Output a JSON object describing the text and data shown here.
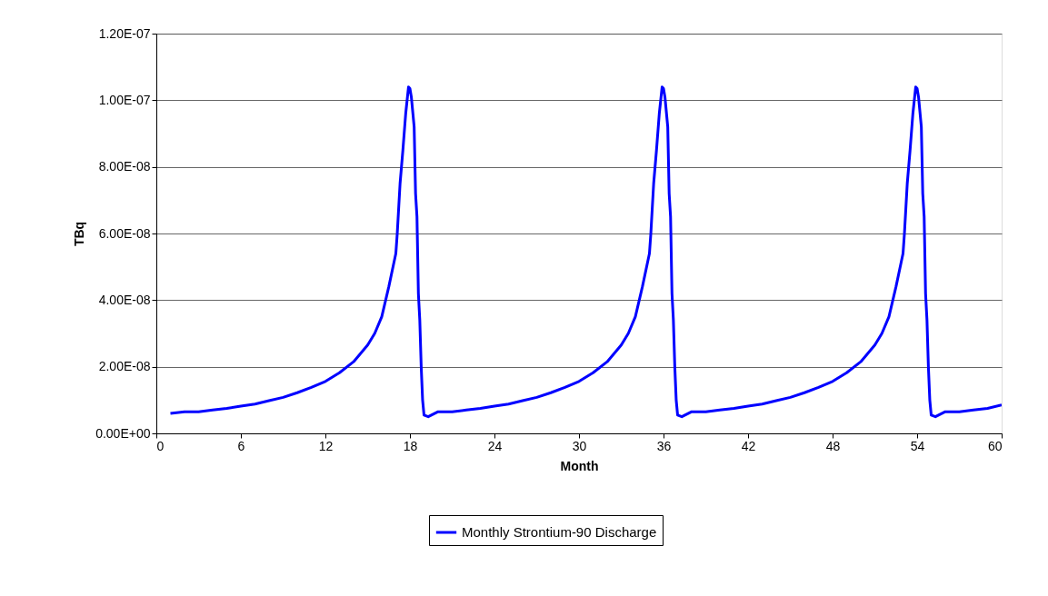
{
  "chart_data": {
    "type": "line",
    "xlabel": "Month",
    "ylabel": "TBq",
    "xlim": [
      0,
      60
    ],
    "xticks": [
      0,
      6,
      12,
      18,
      24,
      30,
      36,
      42,
      48,
      54,
      60
    ],
    "ylim": [
      0,
      1.2e-07
    ],
    "yticks": [
      {
        "value": 0,
        "label": "0.00E+00"
      },
      {
        "value": 2e-08,
        "label": "2.00E-08"
      },
      {
        "value": 4e-08,
        "label": "4.00E-08"
      },
      {
        "value": 6e-08,
        "label": "6.00E-08"
      },
      {
        "value": 8e-08,
        "label": "8.00E-08"
      },
      {
        "value": 1e-07,
        "label": "1.00E-07"
      },
      {
        "value": 1.2e-07,
        "label": "1.20E-07"
      }
    ],
    "grid": "y",
    "legend": "bottom",
    "marker": "none",
    "line_style": "solid",
    "series": [
      {
        "name": "Monthly Strontium-90 Discharge",
        "color": "#0000ff",
        "x": [
          1,
          2,
          3,
          4,
          5,
          6,
          7,
          8,
          9,
          10,
          11,
          12,
          13,
          14,
          15,
          15.5,
          16,
          16.5,
          17,
          17.1,
          17.3,
          17.5,
          17.7,
          17.9,
          18,
          18.1,
          18.3,
          18.4,
          18.5,
          18.6,
          18.7,
          18.8,
          18.9,
          19,
          19.3,
          20,
          21,
          22,
          23,
          24,
          25,
          26,
          27,
          28,
          29,
          30,
          31,
          32,
          33,
          33.5,
          34,
          34.5,
          35,
          35.1,
          35.3,
          35.5,
          35.7,
          35.9,
          36,
          36.1,
          36.3,
          36.4,
          36.5,
          36.6,
          36.7,
          36.8,
          36.9,
          37,
          37.3,
          38,
          39,
          40,
          41,
          42,
          43,
          44,
          45,
          46,
          47,
          48,
          49,
          50,
          51,
          51.5,
          52,
          52.5,
          53,
          53.1,
          53.3,
          53.5,
          53.7,
          53.9,
          54,
          54.1,
          54.3,
          54.4,
          54.5,
          54.6,
          54.7,
          54.8,
          54.9,
          55,
          55.3,
          56,
          57,
          58,
          59,
          60
        ],
        "values": [
          6e-09,
          6.5e-09,
          6.5e-09,
          7e-09,
          7.5e-09,
          8.2e-09,
          8.8e-09,
          9.8e-09,
          1.08e-08,
          1.22e-08,
          1.38e-08,
          1.56e-08,
          1.82e-08,
          2.15e-08,
          2.65e-08,
          3e-08,
          3.5e-08,
          4.4e-08,
          5.4e-08,
          6e-08,
          7.5e-08,
          8.5e-08,
          9.6e-08,
          1.04e-07,
          1.035e-07,
          1.01e-07,
          9.2e-08,
          7.2e-08,
          6.5e-08,
          4.2e-08,
          3.4e-08,
          2e-08,
          1e-08,
          5.5e-09,
          5e-09,
          6.5e-09,
          6.5e-09,
          7e-09,
          7.5e-09,
          8.2e-09,
          8.8e-09,
          9.8e-09,
          1.08e-08,
          1.22e-08,
          1.38e-08,
          1.56e-08,
          1.82e-08,
          2.15e-08,
          2.65e-08,
          3e-08,
          3.5e-08,
          4.4e-08,
          5.4e-08,
          6e-08,
          7.5e-08,
          8.5e-08,
          9.6e-08,
          1.04e-07,
          1.035e-07,
          1.01e-07,
          9.2e-08,
          7.2e-08,
          6.5e-08,
          4.2e-08,
          3.4e-08,
          2e-08,
          1e-08,
          5.5e-09,
          5e-09,
          6.5e-09,
          6.5e-09,
          7e-09,
          7.5e-09,
          8.2e-09,
          8.8e-09,
          9.8e-09,
          1.08e-08,
          1.22e-08,
          1.38e-08,
          1.56e-08,
          1.82e-08,
          2.15e-08,
          2.65e-08,
          3e-08,
          3.5e-08,
          4.4e-08,
          5.4e-08,
          6e-08,
          7.5e-08,
          8.5e-08,
          9.6e-08,
          1.04e-07,
          1.035e-07,
          1.01e-07,
          9.2e-08,
          7.2e-08,
          6.5e-08,
          4.2e-08,
          3.4e-08,
          2e-08,
          1e-08,
          5.5e-09,
          5e-09,
          6.5e-09,
          6.5e-09,
          7e-09,
          7.5e-09,
          8.5e-09
        ]
      }
    ]
  }
}
